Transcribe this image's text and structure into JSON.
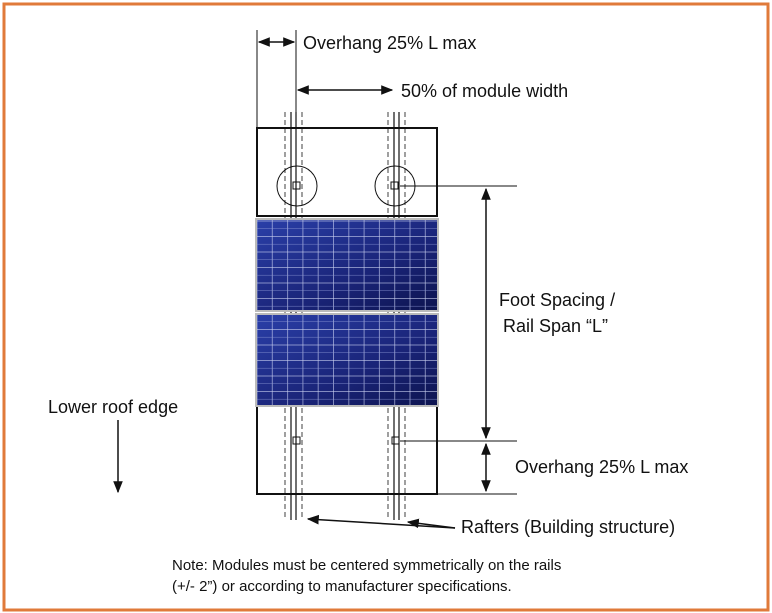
{
  "labels": {
    "overhang_top": "Overhang 25% L max",
    "module_width": "50% of module width",
    "foot_spacing_1": "Foot Spacing /",
    "foot_spacing_2": "Rail Span “L”",
    "lower_roof_edge": "Lower roof edge",
    "overhang_bottom": "Overhang  25% L max",
    "rafters": "Rafters (Building structure)",
    "note_1": "Note: Modules must be centered symmetrically on the rails",
    "note_2": "(+/- 2”) or according to manufacturer specifications."
  }
}
